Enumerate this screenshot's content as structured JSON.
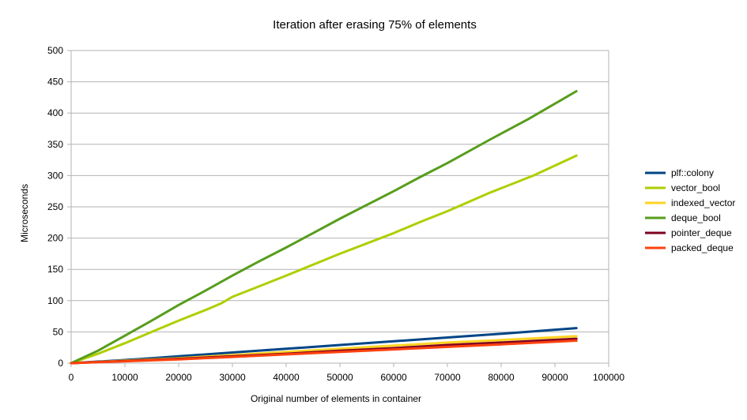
{
  "chart_data": {
    "type": "line",
    "title": "Iteration after erasing 75% of elements",
    "xlabel": "Original number of elements in container",
    "ylabel": "Microseconds",
    "xlim": [
      0,
      100000
    ],
    "ylim": [
      0,
      500
    ],
    "x_ticks": [
      0,
      10000,
      20000,
      30000,
      40000,
      50000,
      60000,
      70000,
      80000,
      90000,
      100000
    ],
    "y_ticks": [
      0,
      50,
      100,
      150,
      200,
      250,
      300,
      350,
      400,
      450,
      500
    ],
    "grid": "horizontal",
    "legend_position": "right",
    "series": [
      {
        "name": "plf::colony",
        "color": "#004586",
        "points": [
          [
            0,
            0
          ],
          [
            5000,
            2.5
          ],
          [
            10000,
            5
          ],
          [
            15000,
            8
          ],
          [
            20000,
            11
          ],
          [
            30000,
            17
          ],
          [
            40000,
            23
          ],
          [
            50000,
            29
          ],
          [
            60000,
            35
          ],
          [
            70000,
            41
          ],
          [
            80000,
            47
          ],
          [
            94000,
            56
          ]
        ]
      },
      {
        "name": "vector_bool",
        "color": "#aecf00",
        "points": [
          [
            0,
            0
          ],
          [
            5000,
            15
          ],
          [
            10000,
            32
          ],
          [
            15000,
            50
          ],
          [
            20000,
            68
          ],
          [
            25000,
            85
          ],
          [
            28000,
            96
          ],
          [
            30000,
            106
          ],
          [
            35000,
            123
          ],
          [
            40000,
            140
          ],
          [
            50000,
            175
          ],
          [
            60000,
            208
          ],
          [
            65000,
            226
          ],
          [
            70000,
            243
          ],
          [
            78000,
            273
          ],
          [
            86000,
            300
          ],
          [
            94000,
            332
          ]
        ]
      },
      {
        "name": "indexed_vector",
        "color": "#ffd320",
        "points": [
          [
            0,
            0
          ],
          [
            10000,
            4
          ],
          [
            20000,
            8
          ],
          [
            30000,
            13
          ],
          [
            40000,
            18
          ],
          [
            50000,
            23
          ],
          [
            60000,
            28
          ],
          [
            70000,
            33
          ],
          [
            80000,
            37
          ],
          [
            94000,
            43
          ]
        ]
      },
      {
        "name": "deque_bool",
        "color": "#579d1c",
        "points": [
          [
            0,
            0
          ],
          [
            5000,
            20
          ],
          [
            10000,
            44
          ],
          [
            15000,
            68
          ],
          [
            20000,
            93
          ],
          [
            25000,
            116
          ],
          [
            30000,
            140
          ],
          [
            35000,
            163
          ],
          [
            40000,
            185
          ],
          [
            45000,
            208
          ],
          [
            50000,
            231
          ],
          [
            55000,
            253
          ],
          [
            60000,
            275
          ],
          [
            65000,
            298
          ],
          [
            70000,
            320
          ],
          [
            78000,
            358
          ],
          [
            85000,
            390
          ],
          [
            94000,
            435
          ]
        ]
      },
      {
        "name": "pointer_deque",
        "color": "#7e0021",
        "points": [
          [
            0,
            0
          ],
          [
            10000,
            3.5
          ],
          [
            20000,
            7
          ],
          [
            30000,
            11
          ],
          [
            40000,
            15
          ],
          [
            50000,
            20
          ],
          [
            60000,
            24
          ],
          [
            70000,
            29
          ],
          [
            80000,
            33
          ],
          [
            94000,
            39
          ]
        ]
      },
      {
        "name": "packed_deque",
        "color": "#ff420e",
        "points": [
          [
            0,
            0
          ],
          [
            10000,
            3
          ],
          [
            20000,
            6
          ],
          [
            30000,
            10
          ],
          [
            40000,
            14
          ],
          [
            50000,
            18
          ],
          [
            60000,
            22
          ],
          [
            70000,
            26
          ],
          [
            80000,
            30
          ],
          [
            94000,
            36
          ]
        ]
      }
    ]
  }
}
